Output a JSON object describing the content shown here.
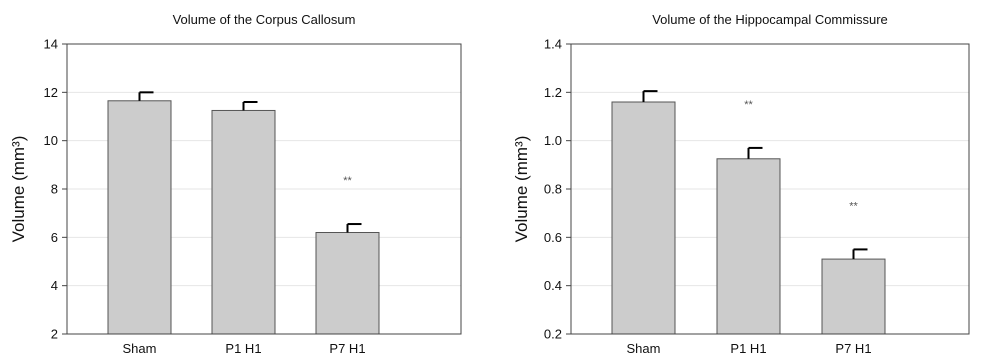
{
  "colors": {
    "bar_fill": "#cccccc",
    "bar_stroke": "#555555",
    "error_bar": "#000000",
    "axis": "#444444",
    "grid": "#e6e6e6"
  },
  "chart_data": [
    {
      "type": "bar",
      "title": "Volume of the Corpus Callosum",
      "ylabel": "Volume (mm³)",
      "categories": [
        "Sham",
        "P1 H1",
        "P7 H1"
      ],
      "values": [
        11.65,
        11.25,
        6.2
      ],
      "errors": [
        0.35,
        0.35,
        0.35
      ],
      "annotations": [
        "",
        "",
        "**"
      ],
      "yticks": [
        "2",
        "4",
        "6",
        "8",
        "10",
        "12",
        "14"
      ],
      "ylim": [
        2,
        14
      ],
      "grid": true
    },
    {
      "type": "bar",
      "title": "Volume of the Hippocampal Commissure",
      "ylabel": "Volume (mm³)",
      "categories": [
        "Sham",
        "P1 H1",
        "P7 H1"
      ],
      "values": [
        1.16,
        0.925,
        0.51
      ],
      "errors": [
        0.045,
        0.045,
        0.04
      ],
      "annotations": [
        "",
        "**",
        "**"
      ],
      "yticks": [
        "0.2",
        "0.4",
        "0.6",
        "0.8",
        "1.0",
        "1.2",
        "1.4"
      ],
      "ylim": [
        0.2,
        1.4
      ],
      "grid": true
    }
  ]
}
